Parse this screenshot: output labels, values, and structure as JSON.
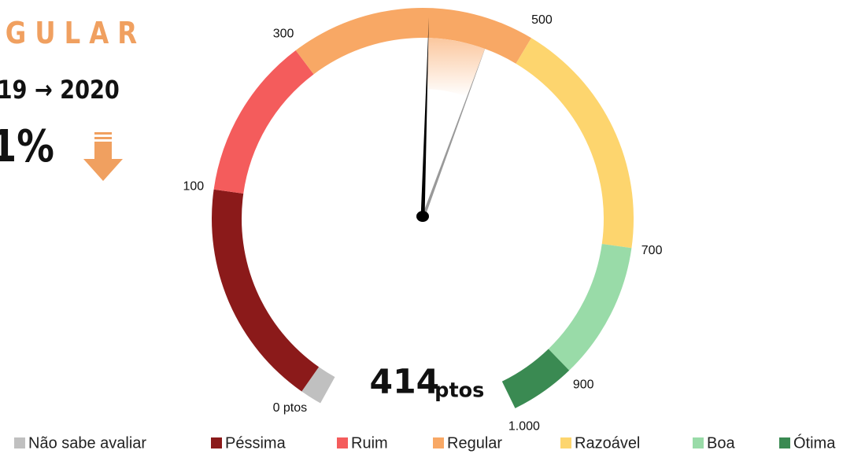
{
  "chart_data": {
    "type": "gauge",
    "rating": "GULAR",
    "period": "19 → 2020",
    "change": "1%",
    "value": 414,
    "value_unit": "ptos",
    "previous_value": 468,
    "ticks": [
      {
        "value": 0,
        "label": "0 ptos"
      },
      100,
      300,
      500,
      700,
      900,
      {
        "value": 1000,
        "label": "1.000"
      }
    ],
    "no_answer": {
      "name": "Não sabe avaliar",
      "color": "#c0c0c0"
    },
    "bands": [
      {
        "name": "Péssima",
        "color": "#8b1a1a",
        "from": 0,
        "to": 100
      },
      {
        "name": "Ruim",
        "color": "#f45c5c",
        "from": 100,
        "to": 300
      },
      {
        "name": "Regular",
        "color": "#f8a865",
        "from": 300,
        "to": 500
      },
      {
        "name": "Razoável",
        "color": "#fdd56e",
        "from": 500,
        "to": 700
      },
      {
        "name": "Boa",
        "color": "#99dba8",
        "from": 700,
        "to": 900
      },
      {
        "name": "Ótima",
        "color": "#3a8a52",
        "from": 900,
        "to": 1000
      }
    ]
  }
}
